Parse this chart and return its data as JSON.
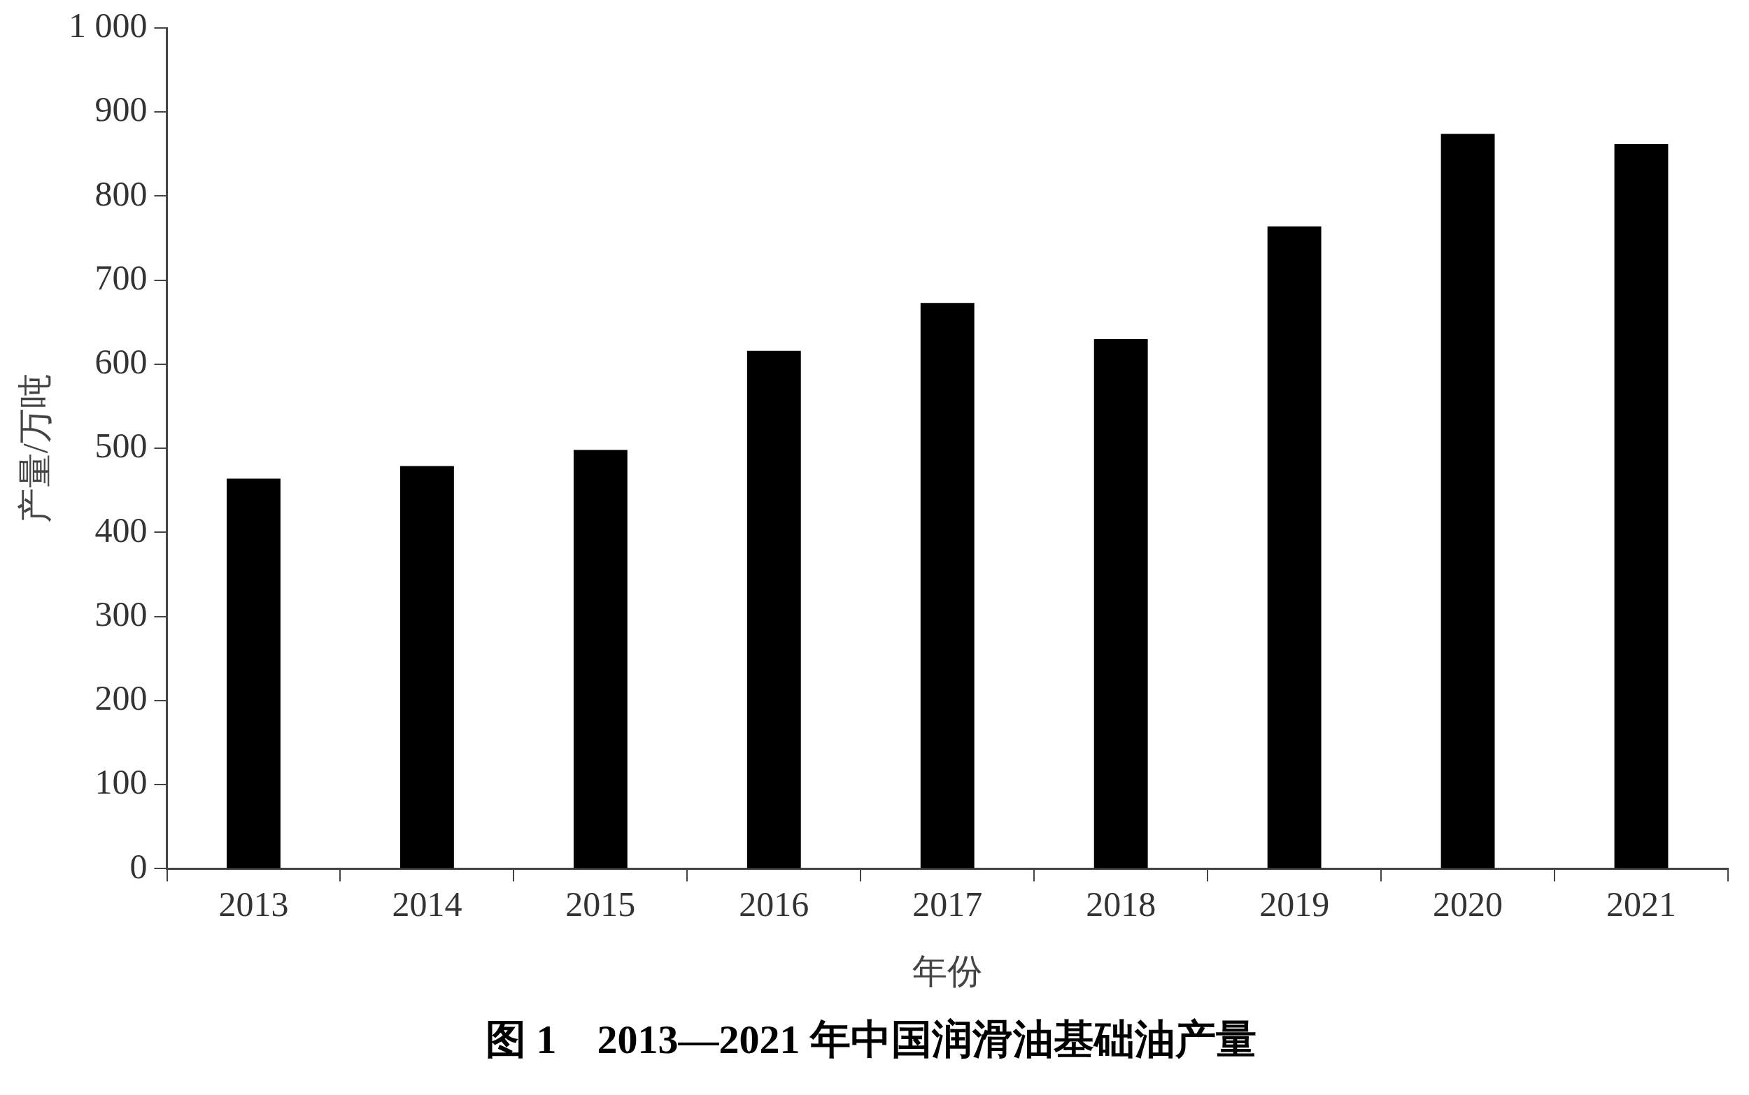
{
  "chart_data": {
    "type": "bar",
    "title": "图 1　2013—2021 年中国润滑油基础油产量",
    "xlabel": "年份",
    "ylabel": "产量/万吨",
    "categories": [
      "2013",
      "2014",
      "2015",
      "2016",
      "2017",
      "2018",
      "2019",
      "2020",
      "2021"
    ],
    "values": [
      464,
      479,
      498,
      616,
      673,
      630,
      764,
      874,
      862
    ],
    "color": "#000000",
    "ylim": [
      0,
      1000
    ],
    "yticks": [
      0,
      100,
      200,
      300,
      400,
      500,
      600,
      700,
      800,
      900,
      {
        "value": 1000,
        "label": "1 000"
      }
    ],
    "grid": false,
    "legend": false
  }
}
